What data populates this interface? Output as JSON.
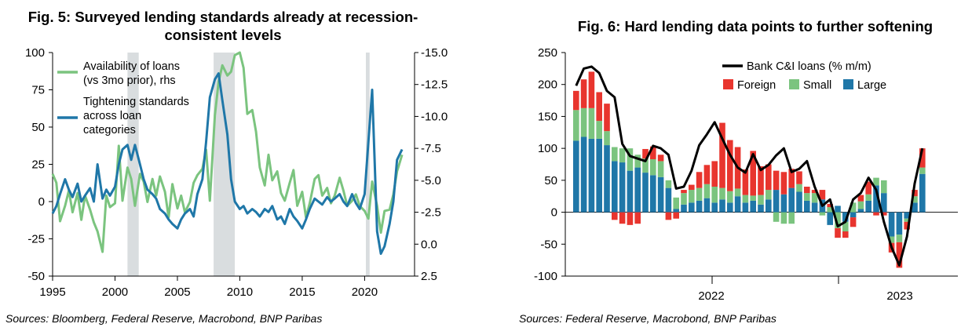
{
  "fig5": {
    "title": "Fig. 5: Surveyed lending standards already at recession-consistent levels",
    "source": "Sources: Bloomberg, Federal Reserve, Macrobond, BNP Paribas",
    "colors": {
      "availability": "#7bc47f",
      "tightening": "#1f77a8",
      "recession": "#d9dddf"
    },
    "chart_data": {
      "type": "line",
      "left_axis": {
        "ylim": [
          -50,
          100
        ],
        "ticks": [
          100,
          75,
          50,
          25,
          0,
          -25,
          -50
        ]
      },
      "right_axis": {
        "reversed": true,
        "ylim": [
          -15,
          2.5
        ],
        "ticks": [
          "-15.0",
          "-12.5",
          "-10.0",
          "-7.5",
          "-5.0",
          "-2.5",
          "0.0",
          "2.5"
        ]
      },
      "xlim": [
        1995,
        2024
      ],
      "x_ticks": [
        1995,
        2000,
        2005,
        2010,
        2015,
        2020
      ],
      "recessions": [
        [
          2001.0,
          2001.9
        ],
        [
          2007.9,
          2009.6
        ],
        [
          2020.1,
          2020.4
        ]
      ],
      "legend": [
        "Availability of loans (vs 3mo prior), rhs",
        "Tightening standards across loan categories"
      ],
      "series": [
        {
          "name": "Availability of loans (vs 3mo prior), rhs",
          "axis": "right",
          "color": "#7bc47f",
          "x": [
            1995.0,
            1995.3,
            1995.6,
            1996.0,
            1996.3,
            1996.6,
            1997.0,
            1997.3,
            1997.6,
            1998.0,
            1998.3,
            1998.6,
            1999.0,
            1999.3,
            1999.6,
            2000.0,
            2000.3,
            2000.6,
            2001.0,
            2001.3,
            2001.6,
            2002.0,
            2002.3,
            2002.6,
            2003.0,
            2003.3,
            2003.6,
            2004.0,
            2004.3,
            2004.6,
            2005.0,
            2005.3,
            2005.6,
            2006.0,
            2006.3,
            2006.6,
            2007.0,
            2007.3,
            2007.6,
            2008.0,
            2008.3,
            2008.6,
            2009.0,
            2009.3,
            2009.6,
            2010.0,
            2010.3,
            2010.6,
            2011.0,
            2011.3,
            2011.6,
            2012.0,
            2012.3,
            2012.6,
            2013.0,
            2013.3,
            2013.6,
            2014.0,
            2014.3,
            2014.6,
            2015.0,
            2015.3,
            2015.6,
            2016.0,
            2016.3,
            2016.6,
            2017.0,
            2017.3,
            2017.6,
            2018.0,
            2018.3,
            2018.6,
            2019.0,
            2019.3,
            2019.6,
            2020.0,
            2020.3,
            2020.6,
            2021.0,
            2021.3,
            2021.6,
            2022.0,
            2022.3,
            2022.6,
            2023.0
          ],
          "values": [
            -5.5,
            -4.8,
            -1.8,
            -3.0,
            -4.2,
            -2.5,
            -4.0,
            -1.9,
            -3.8,
            -2.7,
            -1.7,
            -1.0,
            0.6,
            -3.8,
            -2.9,
            -3.2,
            -7.7,
            -3.4,
            -6.0,
            -5.1,
            -3.0,
            -5.5,
            -4.9,
            -3.3,
            -5.1,
            -3.8,
            -5.3,
            -4.1,
            -2.1,
            -4.7,
            -2.8,
            -3.8,
            -2.5,
            -3.3,
            -4.8,
            -5.4,
            -5.9,
            -7.4,
            -3.4,
            -10.1,
            -12.7,
            -14.0,
            -13.2,
            -13.5,
            -14.8,
            -15.0,
            -13.8,
            -10.2,
            -10.5,
            -8.8,
            -6.0,
            -4.6,
            -7.0,
            -5.0,
            -5.7,
            -4.0,
            -3.4,
            -4.8,
            -5.8,
            -3.0,
            -4.1,
            -2.1,
            -3.2,
            -5.1,
            -5.4,
            -3.8,
            -4.4,
            -3.2,
            -3.8,
            -5.2,
            -4.2,
            -3.0,
            -3.4,
            -3.9,
            -3.0,
            -2.6,
            -2.0,
            -4.9,
            -3.0,
            -0.9,
            -2.6,
            -2.7,
            -3.9,
            -5.7,
            -7.0
          ]
        },
        {
          "name": "Tightening standards across loan categories",
          "axis": "left",
          "color": "#1f77a8",
          "x": [
            1995.0,
            1995.3,
            1995.6,
            1996.0,
            1996.3,
            1996.6,
            1997.0,
            1997.3,
            1997.6,
            1998.0,
            1998.3,
            1998.6,
            1999.0,
            1999.3,
            1999.6,
            2000.0,
            2000.3,
            2000.6,
            2001.0,
            2001.3,
            2001.6,
            2002.0,
            2002.3,
            2002.6,
            2003.0,
            2003.3,
            2003.6,
            2004.0,
            2004.3,
            2004.6,
            2005.0,
            2005.3,
            2005.6,
            2006.0,
            2006.3,
            2006.6,
            2007.0,
            2007.3,
            2007.6,
            2008.0,
            2008.3,
            2008.6,
            2009.0,
            2009.3,
            2009.6,
            2010.0,
            2010.3,
            2010.6,
            2011.0,
            2011.3,
            2011.6,
            2012.0,
            2012.3,
            2012.6,
            2013.0,
            2013.3,
            2013.6,
            2014.0,
            2014.3,
            2014.6,
            2015.0,
            2015.3,
            2015.6,
            2016.0,
            2016.3,
            2016.6,
            2017.0,
            2017.3,
            2017.6,
            2018.0,
            2018.3,
            2018.6,
            2019.0,
            2019.3,
            2019.6,
            2020.0,
            2020.3,
            2020.6,
            2021.0,
            2021.3,
            2021.6,
            2022.0,
            2022.3,
            2022.6,
            2023.0
          ],
          "values": [
            -8,
            -3,
            5,
            15,
            8,
            3,
            12,
            0,
            4,
            9,
            0,
            25,
            2,
            8,
            4,
            10,
            25,
            35,
            38,
            28,
            38,
            25,
            15,
            8,
            5,
            2,
            -5,
            -8,
            -12,
            -15,
            -18,
            -12,
            -8,
            -5,
            -10,
            5,
            15,
            40,
            70,
            82,
            86,
            68,
            45,
            15,
            0,
            -5,
            -3,
            -8,
            -5,
            -7,
            -10,
            -5,
            -7,
            -3,
            -12,
            -10,
            -15,
            -5,
            -10,
            -13,
            -18,
            -12,
            -5,
            2,
            0,
            -2,
            3,
            0,
            2,
            5,
            0,
            -3,
            5,
            -1,
            -5,
            5,
            40,
            75,
            -20,
            -35,
            -30,
            -15,
            0,
            28,
            35
          ]
        }
      ]
    }
  },
  "fig6": {
    "title": "Fig. 6: Hard lending data points to further softening",
    "source": "Sources: Federal Reserve, Macrobond, BNP Paribas",
    "colors": {
      "foreign": "#e8352e",
      "small": "#7bc47f",
      "large": "#1f77a8",
      "line": "#000000"
    },
    "chart_data": {
      "type": "bar",
      "stacked": true,
      "ylim": [
        -100,
        250
      ],
      "y_ticks": [
        250,
        200,
        150,
        100,
        50,
        0,
        -50,
        -100
      ],
      "x_labels": [
        "2022",
        "2023"
      ],
      "legend": [
        "Bank C&I loans (% m/m)",
        "Foreign",
        "Small",
        "Large"
      ],
      "series": [
        {
          "name": "Large",
          "color": "#1f77a8",
          "values": [
            112,
            118,
            115,
            115,
            105,
            80,
            78,
            65,
            70,
            62,
            58,
            55,
            38,
            5,
            12,
            15,
            18,
            22,
            15,
            20,
            15,
            25,
            15,
            18,
            12,
            20,
            35,
            28,
            38,
            32,
            18,
            15,
            20,
            -20,
            10,
            -15,
            -8,
            5,
            18,
            42,
            30,
            -38,
            -35,
            -10,
            15,
            60
          ]
        },
        {
          "name": "Small",
          "color": "#7bc47f",
          "values": [
            48,
            45,
            48,
            28,
            22,
            22,
            22,
            35,
            20,
            22,
            25,
            25,
            12,
            18,
            18,
            20,
            20,
            22,
            25,
            18,
            18,
            12,
            12,
            8,
            15,
            15,
            -15,
            -18,
            -18,
            12,
            12,
            15,
            -5,
            8,
            -25,
            -15,
            15,
            12,
            10,
            12,
            20,
            -10,
            -12,
            -5,
            10,
            10
          ]
        },
        {
          "name": "Foreign",
          "color": "#e8352e",
          "values": [
            30,
            45,
            57,
            45,
            43,
            -12,
            -18,
            -20,
            -18,
            15,
            20,
            10,
            -12,
            -10,
            5,
            8,
            25,
            30,
            40,
            102,
            80,
            65,
            40,
            70,
            45,
            40,
            30,
            35,
            30,
            20,
            10,
            5,
            15,
            5,
            -15,
            -10,
            -15,
            10,
            20,
            -5,
            -5,
            -15,
            -40,
            -12,
            10,
            30
          ]
        },
        {
          "name": "Bank C&I loans (% m/m)",
          "type": "line",
          "color": "#000000",
          "values": [
            198,
            225,
            228,
            218,
            190,
            180,
            107,
            88,
            84,
            80,
            104,
            100,
            90,
            37,
            40,
            65,
            105,
            122,
            141,
            115,
            90,
            70,
            62,
            91,
            66,
            74,
            89,
            100,
            63,
            68,
            80,
            40,
            10,
            20,
            -22,
            -15,
            20,
            30,
            54,
            35,
            -15,
            -55,
            -83,
            -38,
            45,
            100
          ]
        }
      ]
    }
  }
}
